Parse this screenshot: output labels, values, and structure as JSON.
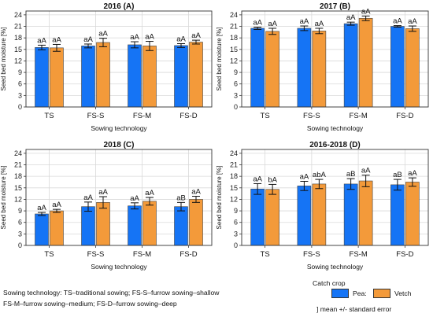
{
  "chart_data": [
    {
      "type": "bar",
      "title": "2016 (A)",
      "xlabel": "Sowing technology",
      "ylabel": "Seed bed moisture [%]",
      "ylim": [
        0,
        25
      ],
      "yticks": [
        0,
        3,
        6,
        9,
        12,
        15,
        18,
        21,
        24
      ],
      "grid": true,
      "categories": [
        "TS",
        "FS-S",
        "FS-M",
        "FS-D"
      ],
      "series": [
        {
          "name": "Pea",
          "values": [
            15.5,
            15.9,
            16.2,
            16.0
          ],
          "errors": [
            0.6,
            0.5,
            0.8,
            0.5
          ],
          "labels": [
            "aA",
            "aA",
            "aA",
            "aA"
          ]
        },
        {
          "name": "Vetch",
          "values": [
            15.4,
            16.8,
            15.9,
            16.9
          ],
          "errors": [
            0.9,
            1.1,
            1.2,
            0.5
          ],
          "labels": [
            "aA",
            "aA",
            "aA",
            "aA"
          ]
        }
      ]
    },
    {
      "type": "bar",
      "title": "2017 (B)",
      "xlabel": "Sowing technology",
      "ylabel": "Seed bed moisture [%]",
      "ylim": [
        0,
        25
      ],
      "yticks": [
        0,
        3,
        6,
        9,
        12,
        15,
        18,
        21,
        24
      ],
      "grid": true,
      "categories": [
        "TS",
        "FS-S",
        "FS-M",
        "FS-D"
      ],
      "series": [
        {
          "name": "Pea",
          "values": [
            20.5,
            20.5,
            21.7,
            21.0
          ],
          "errors": [
            0.3,
            0.6,
            0.4,
            0.2
          ],
          "labels": [
            "aA",
            "aA",
            "aA",
            "aA"
          ]
        },
        {
          "name": "Vetch",
          "values": [
            19.7,
            19.8,
            23.1,
            20.4
          ],
          "errors": [
            0.8,
            0.7,
            0.6,
            0.7
          ],
          "labels": [
            "aA",
            "aA",
            "aA",
            "aA"
          ]
        }
      ]
    },
    {
      "type": "bar",
      "title": "2018 (C)",
      "xlabel": "Sowing technology",
      "ylabel": "Seed bed moisture [%]",
      "ylim": [
        0,
        25
      ],
      "yticks": [
        0,
        3,
        6,
        9,
        12,
        15,
        18,
        21,
        24
      ],
      "grid": true,
      "categories": [
        "TS",
        "FS-S",
        "FS-M",
        "FS-D"
      ],
      "series": [
        {
          "name": "Pea",
          "values": [
            8.2,
            10.1,
            10.3,
            10.1
          ],
          "errors": [
            0.4,
            1.2,
            0.8,
            1.1
          ],
          "labels": [
            "aA",
            "aA",
            "aA",
            "aB"
          ]
        },
        {
          "name": "Vetch",
          "values": [
            9.0,
            11.2,
            11.5,
            12.0
          ],
          "errors": [
            0.4,
            1.5,
            1.0,
            0.8
          ],
          "labels": [
            "aA",
            "aA",
            "aA",
            "aA"
          ]
        }
      ]
    },
    {
      "type": "bar",
      "title": "2016-2018 (D)",
      "xlabel": "Sowing technology",
      "ylabel": "Seed bed moisture [%]",
      "ylim": [
        0,
        25
      ],
      "yticks": [
        0,
        3,
        6,
        9,
        12,
        15,
        18,
        21,
        24
      ],
      "grid": true,
      "categories": [
        "TS",
        "FS-S",
        "FS-M",
        "FS-D"
      ],
      "series": [
        {
          "name": "Pea",
          "values": [
            14.7,
            15.5,
            16.0,
            15.8
          ],
          "errors": [
            1.4,
            1.2,
            1.4,
            1.4
          ],
          "labels": [
            "aA",
            "aA",
            "aB",
            "aB"
          ]
        },
        {
          "name": "Vetch",
          "values": [
            14.6,
            16.0,
            16.8,
            16.5
          ],
          "errors": [
            1.3,
            1.2,
            1.5,
            1.1
          ],
          "labels": [
            "bA",
            "abA",
            "aA",
            "aA"
          ]
        }
      ]
    }
  ],
  "colors": {
    "Pea": "#1574f5",
    "Vetch": "#f39a3a",
    "grid": "#d9d9d9",
    "axis": "#333333"
  },
  "footnote": {
    "line1": "Sowing technology: TS–traditional sowing; FS-S–furrow sowing–shallow",
    "line2": "FS-M–furrow sowing–medium; FS-D–furrow sowing–deep"
  },
  "legend": {
    "title": "Catch crop",
    "pea": "Pea:",
    "vetch": "Vetch",
    "se_note": "] mean +/- standard error"
  }
}
